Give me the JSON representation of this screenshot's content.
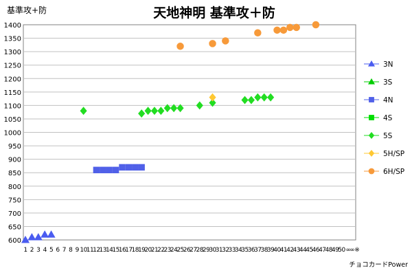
{
  "chart_data": {
    "type": "scatter",
    "title": "天地神明 基準攻＋防",
    "ylabel": "基準攻+防",
    "xlabel_footer": "チョコカードPower",
    "ylim": [
      600,
      1400
    ],
    "yticks": [
      600,
      650,
      700,
      750,
      800,
      850,
      900,
      950,
      1000,
      1050,
      1100,
      1150,
      1200,
      1250,
      1300,
      1350,
      1400
    ],
    "xticks": [
      "1",
      "2",
      "3",
      "4",
      "5",
      "6",
      "7",
      "8",
      "9",
      "10",
      "11",
      "12",
      "13",
      "14",
      "15",
      "16",
      "17",
      "18",
      "19",
      "20",
      "21",
      "22",
      "23",
      "24",
      "25",
      "26",
      "27",
      "28",
      "29",
      "30",
      "31",
      "32",
      "33",
      "34",
      "35",
      "36",
      "37",
      "38",
      "39",
      "40",
      "41",
      "42",
      "43",
      "44",
      "45",
      "46",
      "47",
      "48",
      "49",
      "50",
      "∞",
      "∞※"
    ],
    "grid": true,
    "legend_position": "right",
    "series": [
      {
        "name": "3N",
        "color": "#4a5cf0",
        "marker": "triangle",
        "points": [
          [
            1,
            600
          ],
          [
            2,
            610
          ],
          [
            3,
            610
          ],
          [
            4,
            620
          ],
          [
            5,
            620
          ]
        ]
      },
      {
        "name": "3S",
        "color": "#00cc00",
        "marker": "triangle",
        "points": []
      },
      {
        "name": "4N",
        "color": "#5060e8",
        "marker": "square",
        "points": [
          [
            12,
            860
          ],
          [
            13,
            860
          ],
          [
            14,
            860
          ],
          [
            15,
            860
          ],
          [
            16,
            870
          ],
          [
            17,
            870
          ],
          [
            18,
            870
          ],
          [
            19,
            870
          ]
        ]
      },
      {
        "name": "4S",
        "color": "#00dd00",
        "marker": "square",
        "points": []
      },
      {
        "name": "5S",
        "color": "#22dd22",
        "marker": "diamond",
        "points": [
          [
            10,
            1080
          ],
          [
            19,
            1070
          ],
          [
            20,
            1080
          ],
          [
            21,
            1080
          ],
          [
            22,
            1080
          ],
          [
            23,
            1090
          ],
          [
            24,
            1090
          ],
          [
            25,
            1090
          ],
          [
            28,
            1100
          ],
          [
            30,
            1110
          ],
          [
            35,
            1120
          ],
          [
            36,
            1120
          ],
          [
            37,
            1130
          ],
          [
            38,
            1130
          ],
          [
            39,
            1130
          ]
        ]
      },
      {
        "name": "5H/SP",
        "color": "#ffc832",
        "marker": "diamond",
        "points": [
          [
            30,
            1130
          ]
        ]
      },
      {
        "name": "6H/SP",
        "color": "#f79a3a",
        "marker": "circle",
        "points": [
          [
            25,
            1320
          ],
          [
            30,
            1330
          ],
          [
            32,
            1340
          ],
          [
            37,
            1370
          ],
          [
            40,
            1380
          ],
          [
            41,
            1380
          ],
          [
            42,
            1390
          ],
          [
            43,
            1390
          ],
          [
            46,
            1400
          ]
        ]
      }
    ]
  }
}
